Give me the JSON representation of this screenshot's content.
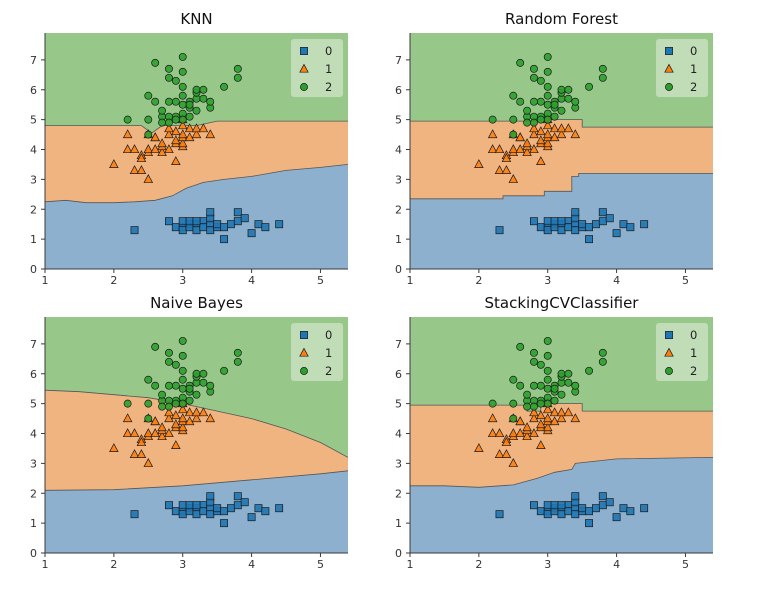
{
  "colors": {
    "class_0": "#1f77b4",
    "class_1": "#ff7f0e",
    "class_2": "#2ca02c",
    "region_0": "#8cb0cd",
    "region_1": "#f0b481",
    "region_2": "#97c88a",
    "border": "#3a3a3a"
  },
  "chart_data": [
    {
      "type": "scatter",
      "title": "KNN",
      "xlim": [
        1,
        5.4
      ],
      "ylim": [
        0,
        7.9
      ],
      "x_ticks": [
        "1",
        "2",
        "3",
        "4",
        "5"
      ],
      "y_ticks": [
        "0",
        "1",
        "2",
        "3",
        "4",
        "5",
        "6",
        "7"
      ],
      "legend": [
        "0",
        "1",
        "2"
      ],
      "boundary_01": [
        [
          1,
          2.25
        ],
        [
          1.3,
          2.3
        ],
        [
          1.6,
          2.22
        ],
        [
          2.0,
          2.22
        ],
        [
          2.3,
          2.25
        ],
        [
          2.6,
          2.3
        ],
        [
          2.85,
          2.45
        ],
        [
          3.05,
          2.7
        ],
        [
          3.3,
          2.9
        ],
        [
          3.6,
          3.0
        ],
        [
          4.0,
          3.1
        ],
        [
          4.5,
          3.3
        ],
        [
          5.0,
          3.4
        ],
        [
          5.4,
          3.5
        ]
      ],
      "boundary_12": [
        [
          1,
          4.8
        ],
        [
          2.0,
          4.8
        ],
        [
          2.4,
          4.8
        ],
        [
          2.55,
          4.55
        ],
        [
          2.7,
          4.8
        ],
        [
          3.2,
          4.8
        ],
        [
          3.5,
          4.95
        ],
        [
          4.0,
          4.95
        ],
        [
          5.4,
          4.95
        ]
      ]
    },
    {
      "type": "scatter",
      "title": "Random Forest",
      "xlim": [
        1,
        5.4
      ],
      "ylim": [
        0,
        7.9
      ],
      "x_ticks": [
        "1",
        "2",
        "3",
        "4",
        "5"
      ],
      "y_ticks": [
        "0",
        "1",
        "2",
        "3",
        "4",
        "5",
        "6",
        "7"
      ],
      "legend": [
        "0",
        "1",
        "2"
      ],
      "boundary_01": [
        [
          1,
          2.35
        ],
        [
          2.35,
          2.35
        ],
        [
          2.35,
          2.45
        ],
        [
          2.95,
          2.45
        ],
        [
          2.95,
          2.6
        ],
        [
          3.35,
          2.6
        ],
        [
          3.35,
          3.1
        ],
        [
          3.45,
          3.1
        ],
        [
          3.45,
          3.2
        ],
        [
          5.4,
          3.2
        ]
      ],
      "boundary_12": [
        [
          1,
          4.95
        ],
        [
          3.0,
          4.95
        ],
        [
          3.0,
          5.0
        ],
        [
          3.5,
          5.0
        ],
        [
          3.5,
          4.75
        ],
        [
          5.4,
          4.75
        ]
      ]
    },
    {
      "type": "scatter",
      "title": "Naive Bayes",
      "xlim": [
        1,
        5.4
      ],
      "ylim": [
        0,
        7.9
      ],
      "x_ticks": [
        "1",
        "2",
        "3",
        "4",
        "5"
      ],
      "y_ticks": [
        "0",
        "1",
        "2",
        "3",
        "4",
        "5",
        "6",
        "7"
      ],
      "legend": [
        "0",
        "1",
        "2"
      ],
      "boundary_01": [
        [
          1,
          2.1
        ],
        [
          2.0,
          2.12
        ],
        [
          3.0,
          2.25
        ],
        [
          4.0,
          2.45
        ],
        [
          5.0,
          2.65
        ],
        [
          5.4,
          2.75
        ]
      ],
      "boundary_12": [
        [
          1,
          5.45
        ],
        [
          1.5,
          5.4
        ],
        [
          2.0,
          5.3
        ],
        [
          2.5,
          5.2
        ],
        [
          3.0,
          5.0
        ],
        [
          3.5,
          4.75
        ],
        [
          4.0,
          4.5
        ],
        [
          4.5,
          4.15
        ],
        [
          5.0,
          3.7
        ],
        [
          5.4,
          3.2
        ]
      ]
    },
    {
      "type": "scatter",
      "title": "StackingCVClassifier",
      "xlim": [
        1,
        5.4
      ],
      "ylim": [
        0,
        7.9
      ],
      "x_ticks": [
        "1",
        "2",
        "3",
        "4",
        "5"
      ],
      "y_ticks": [
        "0",
        "1",
        "2",
        "3",
        "4",
        "5",
        "6",
        "7"
      ],
      "legend": [
        "0",
        "1",
        "2"
      ],
      "boundary_01": [
        [
          1,
          2.25
        ],
        [
          1.5,
          2.25
        ],
        [
          2.0,
          2.2
        ],
        [
          2.5,
          2.28
        ],
        [
          2.85,
          2.5
        ],
        [
          3.1,
          2.7
        ],
        [
          3.35,
          2.8
        ],
        [
          3.4,
          3.0
        ],
        [
          4.0,
          3.15
        ],
        [
          5.4,
          3.2
        ]
      ],
      "boundary_12": [
        [
          1,
          4.95
        ],
        [
          2.7,
          4.95
        ],
        [
          2.7,
          4.75
        ],
        [
          2.9,
          4.75
        ],
        [
          2.9,
          5.0
        ],
        [
          3.5,
          5.0
        ],
        [
          3.5,
          4.75
        ],
        [
          5.4,
          4.75
        ]
      ]
    }
  ],
  "points": {
    "class_0": [
      [
        2.3,
        1.3
      ],
      [
        2.9,
        1.4
      ],
      [
        3.0,
        1.4
      ],
      [
        3.0,
        1.3
      ],
      [
        3.1,
        1.5
      ],
      [
        3.1,
        1.4
      ],
      [
        3.2,
        1.5
      ],
      [
        3.2,
        1.3
      ],
      [
        3.3,
        1.6
      ],
      [
        3.3,
        1.4
      ],
      [
        3.4,
        1.5
      ],
      [
        3.4,
        1.7
      ],
      [
        3.4,
        1.3
      ],
      [
        3.5,
        1.4
      ],
      [
        3.5,
        1.5
      ],
      [
        3.6,
        1.0
      ],
      [
        3.6,
        1.4
      ],
      [
        3.7,
        1.5
      ],
      [
        3.8,
        1.9
      ],
      [
        3.8,
        1.6
      ],
      [
        3.9,
        1.7
      ],
      [
        4.0,
        1.2
      ],
      [
        4.1,
        1.5
      ],
      [
        4.2,
        1.4
      ],
      [
        4.4,
        1.5
      ],
      [
        3.0,
        1.6
      ],
      [
        3.1,
        1.6
      ],
      [
        3.2,
        1.6
      ],
      [
        3.4,
        1.9
      ],
      [
        2.8,
        1.6
      ]
    ],
    "class_1": [
      [
        2.0,
        3.5
      ],
      [
        2.2,
        4.0
      ],
      [
        2.2,
        4.5
      ],
      [
        2.3,
        3.3
      ],
      [
        2.3,
        4.0
      ],
      [
        2.4,
        3.3
      ],
      [
        2.4,
        3.8
      ],
      [
        2.4,
        3.7
      ],
      [
        2.5,
        3.0
      ],
      [
        2.5,
        3.9
      ],
      [
        2.5,
        4.0
      ],
      [
        2.6,
        4.0
      ],
      [
        2.6,
        4.4
      ],
      [
        2.7,
        3.9
      ],
      [
        2.7,
        4.1
      ],
      [
        2.7,
        4.2
      ],
      [
        2.8,
        4.0
      ],
      [
        2.8,
        4.5
      ],
      [
        2.8,
        4.7
      ],
      [
        2.9,
        3.6
      ],
      [
        2.9,
        4.2
      ],
      [
        2.9,
        4.3
      ],
      [
        2.9,
        4.6
      ],
      [
        3.0,
        4.1
      ],
      [
        3.0,
        4.2
      ],
      [
        3.0,
        4.4
      ],
      [
        3.0,
        4.5
      ],
      [
        3.0,
        5.0
      ],
      [
        3.1,
        4.4
      ],
      [
        3.1,
        4.7
      ],
      [
        3.2,
        4.5
      ],
      [
        3.2,
        4.7
      ],
      [
        3.3,
        4.7
      ],
      [
        3.4,
        4.5
      ],
      [
        2.5,
        4.5
      ],
      [
        2.6,
        4.4
      ],
      [
        3.0,
        4.8
      ]
    ],
    "class_2": [
      [
        2.2,
        5.0
      ],
      [
        2.5,
        4.5
      ],
      [
        2.5,
        5.0
      ],
      [
        2.5,
        5.8
      ],
      [
        2.6,
        5.6
      ],
      [
        2.6,
        6.9
      ],
      [
        2.7,
        5.1
      ],
      [
        2.7,
        4.9
      ],
      [
        2.7,
        5.3
      ],
      [
        2.8,
        5.1
      ],
      [
        2.8,
        5.6
      ],
      [
        2.8,
        6.4
      ],
      [
        2.8,
        6.7
      ],
      [
        2.9,
        5.1
      ],
      [
        2.9,
        5.6
      ],
      [
        3.0,
        5.2
      ],
      [
        3.0,
        5.5
      ],
      [
        3.0,
        5.8
      ],
      [
        3.0,
        6.1
      ],
      [
        3.0,
        6.6
      ],
      [
        3.0,
        5.0
      ],
      [
        3.1,
        5.4
      ],
      [
        3.1,
        5.6
      ],
      [
        3.1,
        5.5
      ],
      [
        3.2,
        5.7
      ],
      [
        3.2,
        5.9
      ],
      [
        3.2,
        6.0
      ],
      [
        3.3,
        5.7
      ],
      [
        3.3,
        6.0
      ],
      [
        3.4,
        5.4
      ],
      [
        3.4,
        5.6
      ],
      [
        3.6,
        6.1
      ],
      [
        3.8,
        6.4
      ],
      [
        3.8,
        6.7
      ],
      [
        3.0,
        7.1
      ],
      [
        2.9,
        6.3
      ],
      [
        3.1,
        5.1
      ],
      [
        3.2,
        5.3
      ],
      [
        2.8,
        4.9
      ],
      [
        2.9,
        5.0
      ]
    ]
  }
}
